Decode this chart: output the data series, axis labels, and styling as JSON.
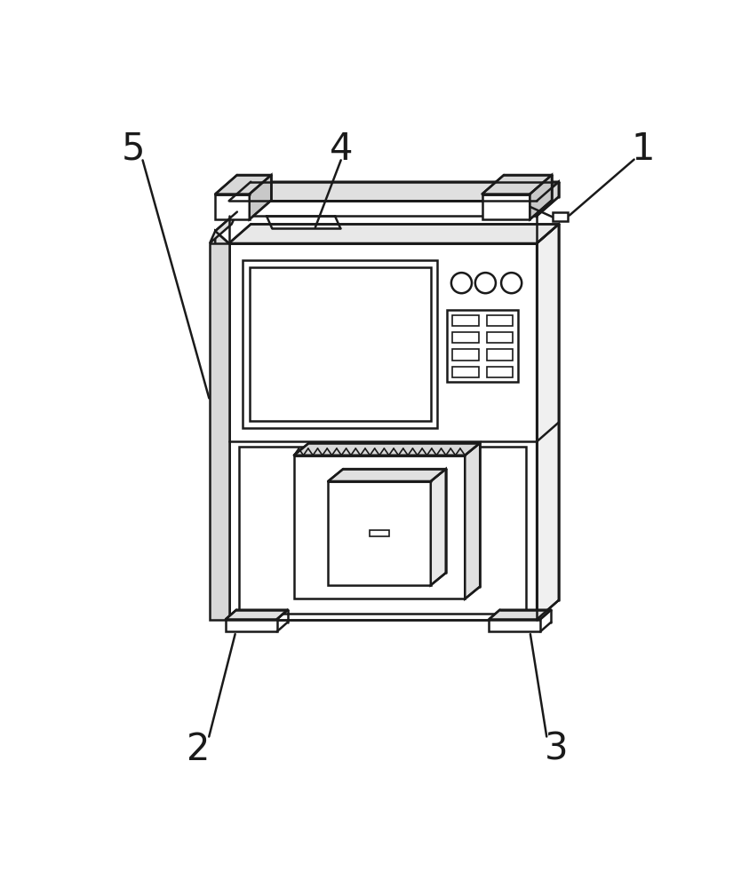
{
  "bg_color": "#ffffff",
  "lc": "#1a1a1a",
  "lw": 1.8,
  "lw_thin": 1.2,
  "label_fontsize": 30
}
